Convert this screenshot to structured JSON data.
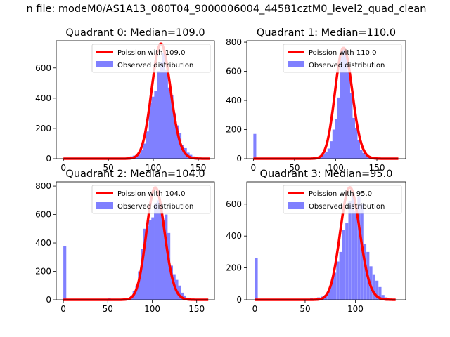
{
  "figure": {
    "suptitle": "n file: modeM0/AS1A13_080T04_9000006004_44581cztM0_level2_quad_clean"
  },
  "legend": {
    "observed_label": "Observed distribution"
  },
  "colors": {
    "histogram": "#8080ff",
    "poisson_line": "#ff0000",
    "axes": "#000000"
  },
  "chart_data": [
    {
      "type": "bar",
      "title": "Quadrant 0: Median=109.0",
      "xlim": [
        -8,
        168
      ],
      "ylim": [
        0,
        780
      ],
      "xticks": [
        0,
        50,
        100,
        150
      ],
      "yticks": [
        0,
        200,
        400,
        600
      ],
      "poisson": {
        "label": "Poission with 109.0",
        "lambda": 109.0,
        "peak": 760,
        "x_range": [
          0,
          163
        ]
      },
      "observed": {
        "label": "Observed distribution",
        "bin_width": 3.3,
        "bins": [
          [
            68,
            5
          ],
          [
            71,
            10
          ],
          [
            74,
            15
          ],
          [
            77,
            20
          ],
          [
            80,
            25
          ],
          [
            83,
            35
          ],
          [
            86,
            60
          ],
          [
            89,
            100
          ],
          [
            92,
            180
          ],
          [
            95,
            370
          ],
          [
            98,
            410
          ],
          [
            101,
            450
          ],
          [
            104,
            580
          ],
          [
            107,
            640
          ],
          [
            110,
            700
          ],
          [
            113,
            590
          ],
          [
            116,
            470
          ],
          [
            119,
            420
          ],
          [
            122,
            300
          ],
          [
            125,
            220
          ],
          [
            128,
            170
          ],
          [
            131,
            90
          ],
          [
            134,
            70
          ],
          [
            137,
            40
          ],
          [
            140,
            25
          ],
          [
            143,
            15
          ],
          [
            146,
            8
          ]
        ]
      }
    },
    {
      "type": "bar",
      "title": "Quadrant 1: Median=110.0",
      "xlim": [
        -8,
        185
      ],
      "ylim": [
        0,
        810
      ],
      "xticks": [
        0,
        50,
        100,
        150
      ],
      "yticks": [
        0,
        200,
        400,
        600,
        800
      ],
      "poisson": {
        "label": "Poission with 110.0",
        "lambda": 110.0,
        "peak": 760,
        "x_range": [
          0,
          176
        ]
      },
      "observed": {
        "label": "Observed distribution",
        "bin_width": 3.5,
        "bins": [
          [
            0,
            170
          ],
          [
            75,
            8
          ],
          [
            78,
            12
          ],
          [
            81,
            20
          ],
          [
            84,
            30
          ],
          [
            87,
            45
          ],
          [
            90,
            70
          ],
          [
            93,
            120
          ],
          [
            96,
            200
          ],
          [
            99,
            270
          ],
          [
            102,
            420
          ],
          [
            105,
            700
          ],
          [
            108,
            750
          ],
          [
            111,
            710
          ],
          [
            114,
            600
          ],
          [
            117,
            450
          ],
          [
            120,
            280
          ],
          [
            123,
            210
          ],
          [
            126,
            130
          ],
          [
            129,
            60
          ],
          [
            132,
            40
          ],
          [
            135,
            25
          ],
          [
            138,
            15
          ]
        ]
      }
    },
    {
      "type": "bar",
      "title": "Quadrant 2: Median=104.0",
      "xlim": [
        -8,
        170
      ],
      "ylim": [
        0,
        830
      ],
      "xticks": [
        0,
        50,
        100,
        150
      ],
      "yticks": [
        0,
        200,
        400,
        600,
        800
      ],
      "poisson": {
        "label": "Poission with 104.0",
        "lambda": 104.0,
        "peak": 790,
        "x_range": [
          0,
          163
        ]
      },
      "observed": {
        "label": "Observed distribution",
        "bin_width": 3.3,
        "bins": [
          [
            0,
            380
          ],
          [
            50,
            10
          ],
          [
            60,
            5
          ],
          [
            66,
            5
          ],
          [
            69,
            8
          ],
          [
            72,
            12
          ],
          [
            75,
            30
          ],
          [
            78,
            60
          ],
          [
            81,
            100
          ],
          [
            84,
            200
          ],
          [
            87,
            360
          ],
          [
            90,
            500
          ],
          [
            93,
            520
          ],
          [
            96,
            560
          ],
          [
            99,
            580
          ],
          [
            102,
            680
          ],
          [
            105,
            700
          ],
          [
            108,
            680
          ],
          [
            111,
            560
          ],
          [
            114,
            600
          ],
          [
            117,
            470
          ],
          [
            120,
            240
          ],
          [
            123,
            180
          ],
          [
            126,
            140
          ],
          [
            129,
            100
          ],
          [
            132,
            50
          ],
          [
            135,
            30
          ],
          [
            138,
            15
          ]
        ]
      }
    },
    {
      "type": "bar",
      "title": "Quadrant 3: Median=95.0",
      "xlim": [
        -8,
        150
      ],
      "ylim": [
        0,
        740
      ],
      "xticks": [
        0,
        50,
        100
      ],
      "yticks": [
        0,
        200,
        400,
        600
      ],
      "poisson": {
        "label": "Poission with 95.0",
        "lambda": 95.0,
        "peak": 705,
        "x_range": [
          0,
          140
        ]
      },
      "observed": {
        "label": "Observed distribution",
        "bin_width": 2.9,
        "bins": [
          [
            0,
            260
          ],
          [
            55,
            10
          ],
          [
            62,
            15
          ],
          [
            66,
            20
          ],
          [
            69,
            30
          ],
          [
            72,
            50
          ],
          [
            75,
            100
          ],
          [
            78,
            170
          ],
          [
            81,
            240
          ],
          [
            84,
            300
          ],
          [
            87,
            440
          ],
          [
            90,
            480
          ],
          [
            93,
            620
          ],
          [
            96,
            680
          ],
          [
            99,
            560
          ],
          [
            102,
            650
          ],
          [
            105,
            600
          ],
          [
            108,
            350
          ],
          [
            111,
            300
          ],
          [
            114,
            210
          ],
          [
            117,
            160
          ],
          [
            120,
            120
          ],
          [
            123,
            80
          ],
          [
            126,
            30
          ],
          [
            129,
            15
          ]
        ]
      }
    }
  ]
}
